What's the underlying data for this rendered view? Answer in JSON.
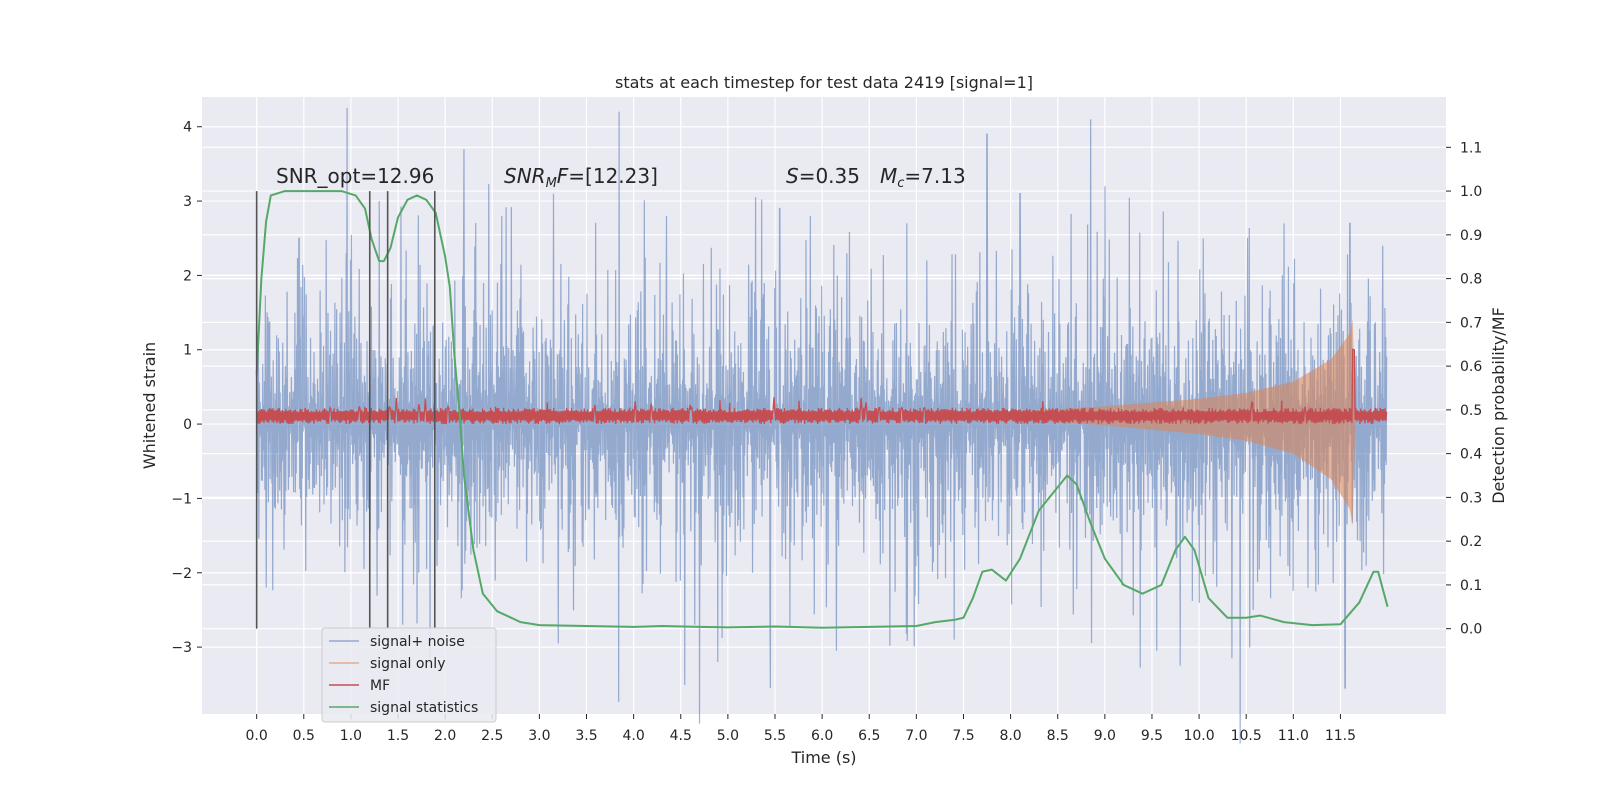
{
  "chart_data": {
    "type": "line",
    "title": "stats at each timestep for test data 2419 [signal=1]",
    "xlabel": "Time (s)",
    "ylabel": "Whitened strain",
    "y2label": "Detection probability/MF",
    "xlim": [
      -0.58,
      12.62
    ],
    "ylim": [
      -3.9,
      4.4
    ],
    "y2lim": [
      -0.195,
      1.215
    ],
    "xticks": [
      "0.0",
      "0.5",
      "1.0",
      "1.5",
      "2.0",
      "2.5",
      "3.0",
      "3.5",
      "4.0",
      "4.5",
      "5.0",
      "5.5",
      "6.0",
      "6.5",
      "7.0",
      "7.5",
      "8.0",
      "8.5",
      "9.0",
      "9.5",
      "10.0",
      "10.5",
      "11.0",
      "11.5"
    ],
    "yticks": [
      "4",
      "3",
      "2",
      "1",
      "0",
      "−1",
      "−2",
      "−3"
    ],
    "y2ticks": [
      "1.1",
      "1.0",
      "0.9",
      "0.8",
      "0.7",
      "0.6",
      "0.5",
      "0.4",
      "0.3",
      "0.2",
      "0.1",
      "0.0"
    ],
    "grid": true,
    "legend_position": "lower-left",
    "annotations": {
      "snr_opt": "SNR_opt=12.96",
      "snr_mf_sym": "SNR",
      "snr_mf_sub": "M",
      "snr_mf_f": "F",
      "snr_mf_val": "=[12.23]",
      "s_sym": "S",
      "s_val": "=0.35",
      "mc_sym": "M",
      "mc_sub": "c",
      "mc_val": "=7.13"
    },
    "vertical_lines_x": [
      0.0,
      1.2,
      1.39,
      1.89
    ],
    "series": [
      {
        "name": "signal+ noise",
        "color": "#4c72b0",
        "kind": "noise",
        "x_range": [
          0.0,
          11.99
        ],
        "typical_amplitude": 1.5,
        "peaks": [
          {
            "x": 0.0,
            "y": 2.0
          },
          {
            "x": 0.1,
            "y": -2.2
          },
          {
            "x": 0.45,
            "y": 2.5
          },
          {
            "x": 0.95,
            "y": 2.3
          },
          {
            "x": 1.3,
            "y": 3.0
          },
          {
            "x": 1.55,
            "y": -2.7
          },
          {
            "x": 2.2,
            "y": 3.7
          },
          {
            "x": 2.6,
            "y": 2.8
          },
          {
            "x": 3.15,
            "y": 3.1
          },
          {
            "x": 3.2,
            "y": -2.95
          },
          {
            "x": 4.35,
            "y": 2.8
          },
          {
            "x": 4.65,
            "y": -2.7
          },
          {
            "x": 5.55,
            "y": 2.9
          },
          {
            "x": 5.45,
            "y": -3.55
          },
          {
            "x": 6.15,
            "y": -3.05
          },
          {
            "x": 6.9,
            "y": 2.7
          },
          {
            "x": 7.4,
            "y": -2.9
          },
          {
            "x": 7.75,
            "y": 3.9
          },
          {
            "x": 8.1,
            "y": 3.1
          },
          {
            "x": 8.85,
            "y": 4.1
          },
          {
            "x": 9.0,
            "y": 3.2
          },
          {
            "x": 9.55,
            "y": -3.05
          },
          {
            "x": 9.8,
            "y": -3.25
          },
          {
            "x": 10.35,
            "y": -3.15
          },
          {
            "x": 10.9,
            "y": 2.7
          },
          {
            "x": 11.55,
            "y": -3.55
          },
          {
            "x": 11.6,
            "y": 2.7
          },
          {
            "x": 11.95,
            "y": 2.4
          }
        ]
      },
      {
        "name": "signal only",
        "color": "#dd8452",
        "kind": "chirp",
        "x_range": [
          7.5,
          11.66
        ],
        "amplitude_at": [
          [
            7.5,
            0.0
          ],
          [
            9.0,
            0.12
          ],
          [
            10.0,
            0.22
          ],
          [
            10.5,
            0.3
          ],
          [
            11.0,
            0.45
          ],
          [
            11.4,
            0.75
          ],
          [
            11.6,
            1.1
          ],
          [
            11.63,
            1.3
          ],
          [
            11.66,
            0.0
          ]
        ]
      },
      {
        "name": "MF",
        "color": "#c44e52",
        "kind": "band",
        "x_range": [
          0.0,
          11.99
        ],
        "base_range": [
          0.0,
          0.22
        ],
        "spike": {
          "x": 11.64,
          "y": 1.0
        }
      },
      {
        "name": "signal statistics",
        "color": "#55a868",
        "kind": "line",
        "axis": "right",
        "points": [
          [
            0.0,
            0.58
          ],
          [
            0.05,
            0.8
          ],
          [
            0.1,
            0.93
          ],
          [
            0.15,
            0.99
          ],
          [
            0.3,
            1.0
          ],
          [
            0.6,
            1.0
          ],
          [
            0.9,
            1.0
          ],
          [
            1.05,
            0.99
          ],
          [
            1.15,
            0.96
          ],
          [
            1.22,
            0.89
          ],
          [
            1.3,
            0.84
          ],
          [
            1.35,
            0.84
          ],
          [
            1.42,
            0.87
          ],
          [
            1.5,
            0.94
          ],
          [
            1.6,
            0.98
          ],
          [
            1.7,
            0.99
          ],
          [
            1.8,
            0.98
          ],
          [
            1.9,
            0.95
          ],
          [
            2.0,
            0.85
          ],
          [
            2.05,
            0.78
          ],
          [
            2.1,
            0.62
          ],
          [
            2.15,
            0.5
          ],
          [
            2.2,
            0.35
          ],
          [
            2.3,
            0.18
          ],
          [
            2.4,
            0.08
          ],
          [
            2.55,
            0.04
          ],
          [
            2.8,
            0.015
          ],
          [
            3.0,
            0.008
          ],
          [
            3.5,
            0.006
          ],
          [
            4.0,
            0.004
          ],
          [
            4.3,
            0.006
          ],
          [
            4.7,
            0.004
          ],
          [
            5.0,
            0.003
          ],
          [
            5.5,
            0.005
          ],
          [
            6.0,
            0.002
          ],
          [
            6.5,
            0.004
          ],
          [
            7.0,
            0.006
          ],
          [
            7.2,
            0.015
          ],
          [
            7.4,
            0.02
          ],
          [
            7.5,
            0.025
          ],
          [
            7.6,
            0.07
          ],
          [
            7.7,
            0.13
          ],
          [
            7.8,
            0.135
          ],
          [
            7.95,
            0.11
          ],
          [
            8.1,
            0.16
          ],
          [
            8.3,
            0.27
          ],
          [
            8.45,
            0.31
          ],
          [
            8.6,
            0.35
          ],
          [
            8.7,
            0.33
          ],
          [
            8.85,
            0.24
          ],
          [
            9.0,
            0.16
          ],
          [
            9.2,
            0.1
          ],
          [
            9.4,
            0.08
          ],
          [
            9.6,
            0.1
          ],
          [
            9.75,
            0.18
          ],
          [
            9.85,
            0.21
          ],
          [
            9.95,
            0.18
          ],
          [
            10.1,
            0.07
          ],
          [
            10.3,
            0.025
          ],
          [
            10.5,
            0.025
          ],
          [
            10.65,
            0.03
          ],
          [
            10.9,
            0.015
          ],
          [
            11.2,
            0.008
          ],
          [
            11.5,
            0.01
          ],
          [
            11.7,
            0.06
          ],
          [
            11.85,
            0.13
          ],
          [
            11.9,
            0.13
          ],
          [
            12.0,
            0.05
          ]
        ]
      }
    ],
    "colors": {
      "axes_bg": "#eaeaf2",
      "grid": "#ffffff",
      "vline": "#555555"
    }
  }
}
